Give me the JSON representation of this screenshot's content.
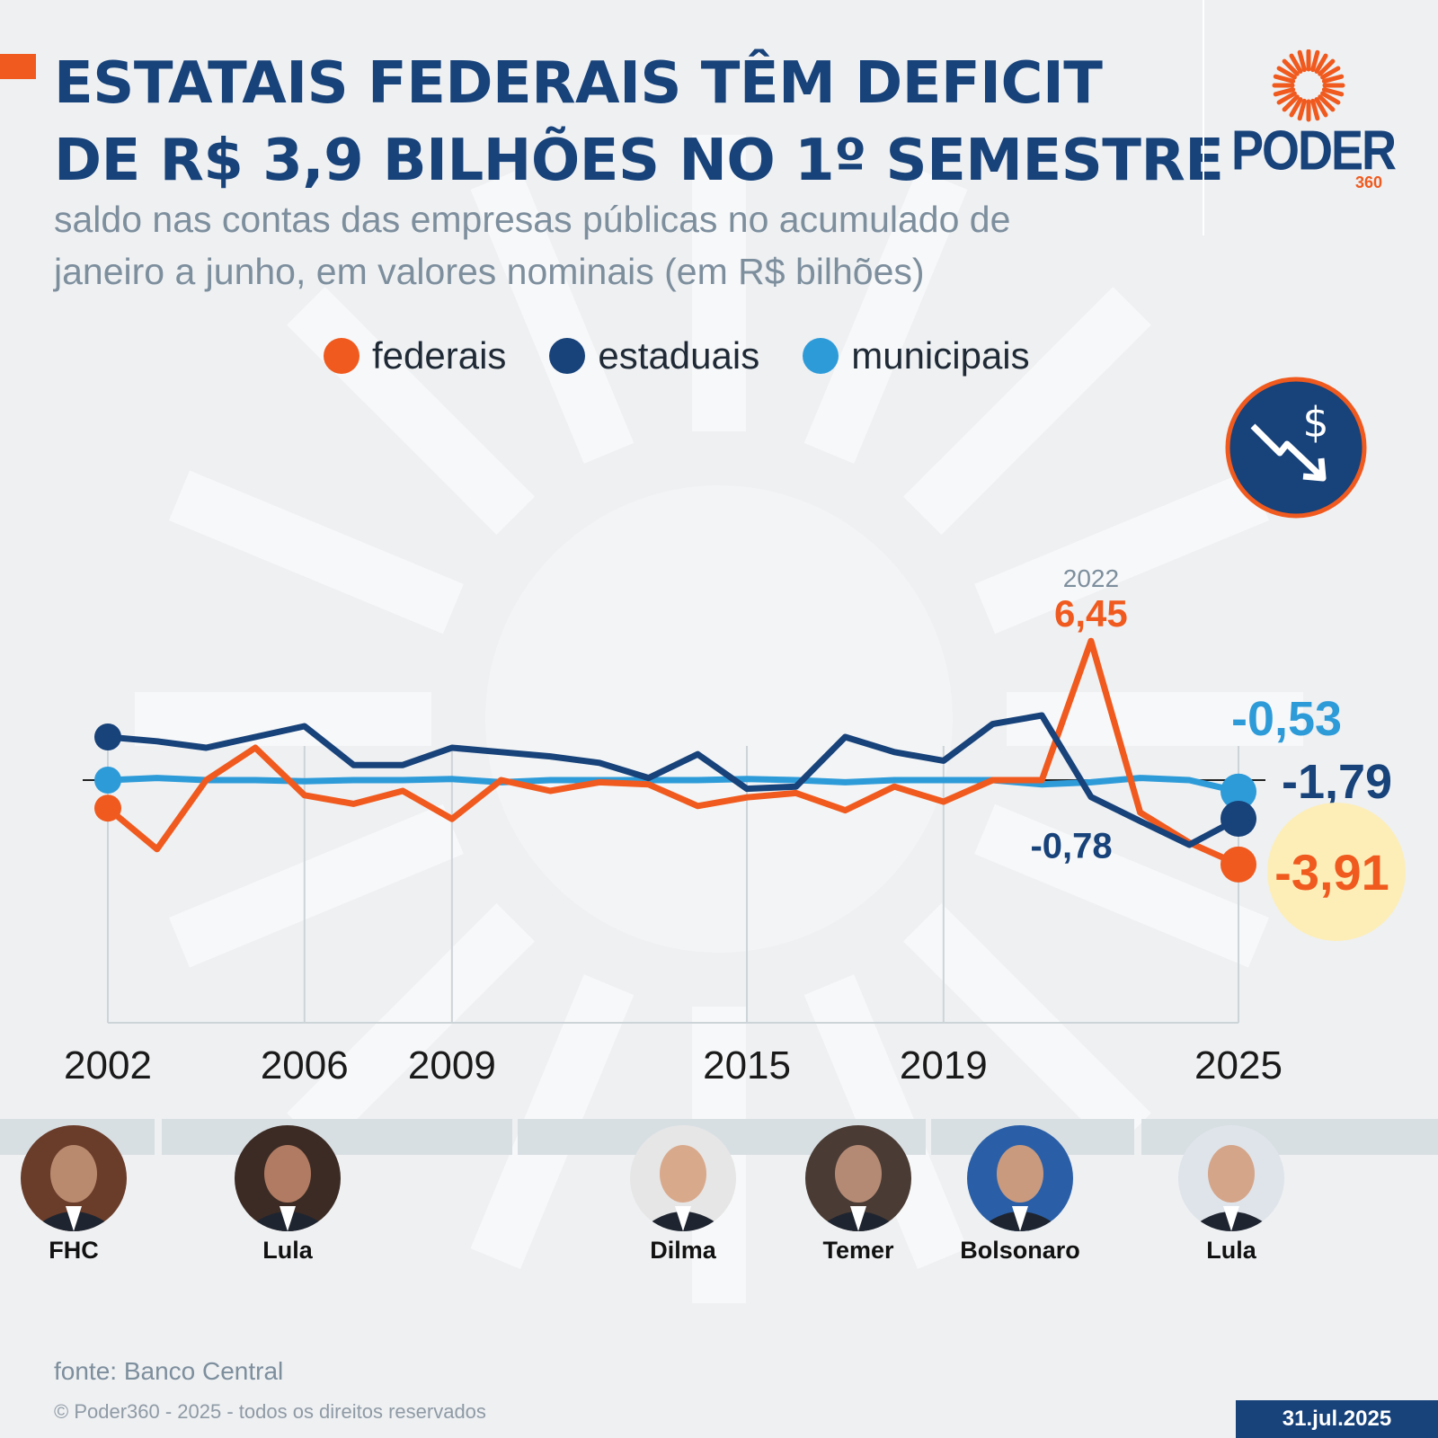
{
  "header": {
    "title_line1": "ESTATAIS FEDERAIS TÊM DEFICIT",
    "title_line2": "DE R$ 3,9 BILHÕES NO 1º SEMESTRE",
    "subtitle_line1": "saldo nas contas das empresas públicas no acumulado de",
    "subtitle_line2": "janeiro a junho, em valores nominais (em R$ bilhões)"
  },
  "logo": {
    "word": "PODER",
    "number": "360"
  },
  "legend": [
    {
      "label": "federais",
      "color": "#f05a1e"
    },
    {
      "label": "estaduais",
      "color": "#17427a"
    },
    {
      "label": "municipais",
      "color": "#2e9bd9"
    }
  ],
  "icon": {
    "name": "money-down-trend-icon"
  },
  "chart_data": {
    "type": "line",
    "title": "ESTATAIS FEDERAIS TÊM DEFICIT DE R$ 3,9 BILHÕES NO 1º SEMESTRE",
    "xlabel": "",
    "ylabel": "R$ bilhões",
    "x": [
      2002,
      2003,
      2004,
      2005,
      2006,
      2007,
      2008,
      2009,
      2010,
      2011,
      2012,
      2013,
      2014,
      2015,
      2016,
      2017,
      2018,
      2019,
      2020,
      2021,
      2022,
      2023,
      2024,
      2025
    ],
    "xticks": [
      "2002",
      "2006",
      "2009",
      "2015",
      "2019",
      "2025"
    ],
    "ylim": [
      -12,
      12
    ],
    "series": [
      {
        "name": "federais",
        "color": "#f05a1e",
        "values": [
          -1.3,
          -3.2,
          0,
          1.5,
          -0.7,
          -1.1,
          -0.5,
          -1.8,
          0,
          -0.5,
          -0.1,
          -0.2,
          -1.2,
          -0.8,
          -0.6,
          -1.4,
          -0.3,
          -1.0,
          0,
          0,
          6.45,
          -1.5,
          -2.9,
          -3.91
        ]
      },
      {
        "name": "estaduais",
        "color": "#17427a",
        "values": [
          2.0,
          1.8,
          1.5,
          2.0,
          2.5,
          0.7,
          0.7,
          1.5,
          1.3,
          1.1,
          0.8,
          0.1,
          1.2,
          -0.4,
          -0.3,
          2.0,
          1.3,
          0.9,
          2.6,
          3.0,
          -0.78,
          -1.9,
          -3.0,
          -1.79
        ]
      },
      {
        "name": "municipais",
        "color": "#2e9bd9",
        "values": [
          0.0,
          0.1,
          0.0,
          0.0,
          -0.05,
          0.0,
          0.0,
          0.05,
          -0.1,
          0.0,
          0.0,
          0.0,
          0.0,
          0.05,
          0.0,
          -0.1,
          0.0,
          0.0,
          0.0,
          -0.2,
          -0.1,
          0.1,
          0.0,
          -0.53
        ]
      }
    ],
    "annotations": {
      "peak_year": "2022",
      "peak_value": "6,45",
      "estaduais_2022": "-0,78",
      "last_municipais": "-0,53",
      "last_estaduais": "-1,79",
      "last_federais": "-3,91"
    }
  },
  "presidents": [
    {
      "name": "FHC",
      "start": 2002,
      "end": 2002.9
    },
    {
      "name": "Lula",
      "start": 2003,
      "end": 2010.9
    },
    {
      "name": "Dilma",
      "start": 2011,
      "end": 2016.4
    },
    {
      "name": "Temer",
      "start": 2016.5,
      "end": 2018.9
    },
    {
      "name": "Bolsonaro",
      "start": 2019,
      "end": 2022.9
    },
    {
      "name": "Lula",
      "start": 2023,
      "end": 2025
    }
  ],
  "footer": {
    "source": "fonte: Banco Central",
    "copyright": "© Poder360 - 2025 - todos os direitos reservados",
    "date": "31.jul.2025"
  }
}
